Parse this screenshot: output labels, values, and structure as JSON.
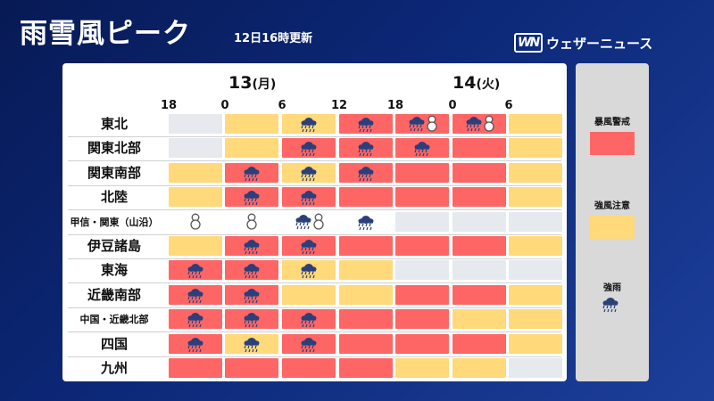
{
  "header": {
    "title": "雨雪風ピーク",
    "updated": "12日16時更新",
    "brand": "ウェザーニュース",
    "brand_logo": "WN"
  },
  "days": [
    {
      "day": "13",
      "weekday": "(月)"
    },
    {
      "day": "14",
      "weekday": "(火)"
    }
  ],
  "hours": [
    "18",
    "0",
    "6",
    "12",
    "18",
    "0",
    "6"
  ],
  "rows": [
    {
      "label": "東北",
      "small": false,
      "cells": [
        [
          "gray",
          ""
        ],
        [
          "yellow",
          ""
        ],
        [
          "yellow",
          "rain"
        ],
        [
          "red",
          "rain"
        ],
        [
          "red",
          "rain-snow"
        ],
        [
          "red",
          "rain-snow"
        ],
        [
          "yellow",
          ""
        ]
      ]
    },
    {
      "label": "関東北部",
      "small": false,
      "cells": [
        [
          "gray",
          ""
        ],
        [
          "yellow",
          ""
        ],
        [
          "red",
          "rain"
        ],
        [
          "red",
          "rain"
        ],
        [
          "red",
          "rain"
        ],
        [
          "red",
          ""
        ],
        [
          "yellow",
          ""
        ]
      ]
    },
    {
      "label": "関東南部",
      "small": false,
      "cells": [
        [
          "yellow",
          ""
        ],
        [
          "red",
          "rain"
        ],
        [
          "yellow",
          "rain"
        ],
        [
          "red",
          "rain"
        ],
        [
          "red",
          ""
        ],
        [
          "red",
          ""
        ],
        [
          "yellow",
          ""
        ]
      ]
    },
    {
      "label": "北陸",
      "small": false,
      "cells": [
        [
          "yellow",
          ""
        ],
        [
          "red",
          "rain"
        ],
        [
          "red",
          "rain"
        ],
        [
          "red",
          ""
        ],
        [
          "red",
          ""
        ],
        [
          "red",
          ""
        ],
        [
          "yellow",
          ""
        ]
      ]
    },
    {
      "label": "甲信・関東（山沿）",
      "small": true,
      "cells": [
        [
          "white",
          "snow"
        ],
        [
          "white",
          "snow"
        ],
        [
          "white",
          "rain-snow"
        ],
        [
          "white",
          "rain"
        ],
        [
          "gray",
          ""
        ],
        [
          "gray",
          ""
        ],
        [
          "gray",
          ""
        ]
      ]
    },
    {
      "label": "伊豆諸島",
      "small": false,
      "cells": [
        [
          "yellow",
          ""
        ],
        [
          "red",
          "rain"
        ],
        [
          "red",
          "rain"
        ],
        [
          "red",
          ""
        ],
        [
          "red",
          ""
        ],
        [
          "red",
          ""
        ],
        [
          "yellow",
          ""
        ]
      ]
    },
    {
      "label": "東海",
      "small": false,
      "cells": [
        [
          "red",
          "rain"
        ],
        [
          "red",
          "rain"
        ],
        [
          "yellow",
          "rain"
        ],
        [
          "yellow",
          ""
        ],
        [
          "gray",
          ""
        ],
        [
          "gray",
          ""
        ],
        [
          "gray",
          ""
        ]
      ]
    },
    {
      "label": "近畿南部",
      "small": false,
      "cells": [
        [
          "red",
          "rain"
        ],
        [
          "red",
          "rain"
        ],
        [
          "yellow",
          ""
        ],
        [
          "yellow",
          ""
        ],
        [
          "red",
          ""
        ],
        [
          "red",
          ""
        ],
        [
          "yellow",
          ""
        ]
      ]
    },
    {
      "label": "中国・近畿北部",
      "small": true,
      "cells": [
        [
          "red",
          "rain"
        ],
        [
          "red",
          "rain"
        ],
        [
          "red",
          "rain"
        ],
        [
          "red",
          ""
        ],
        [
          "red",
          ""
        ],
        [
          "yellow",
          ""
        ],
        [
          "yellow",
          ""
        ]
      ]
    },
    {
      "label": "四国",
      "small": false,
      "cells": [
        [
          "red",
          "rain"
        ],
        [
          "yellow",
          "rain"
        ],
        [
          "red",
          "rain"
        ],
        [
          "red",
          ""
        ],
        [
          "red",
          ""
        ],
        [
          "red",
          ""
        ],
        [
          "yellow",
          ""
        ]
      ]
    },
    {
      "label": "九州",
      "small": false,
      "cells": [
        [
          "red",
          ""
        ],
        [
          "red",
          ""
        ],
        [
          "red",
          ""
        ],
        [
          "red",
          ""
        ],
        [
          "yellow",
          ""
        ],
        [
          "yellow",
          ""
        ],
        [
          "gray",
          ""
        ]
      ]
    }
  ],
  "legend": {
    "storm_warning": "暴風警戒",
    "wind_caution": "強風注意",
    "heavy_rain": "強雨"
  },
  "colors": {
    "red": "#fe6665",
    "yellow": "#ffd97a",
    "gray": "#e6e9ee",
    "white": "#ffffff",
    "cloud": "#2b3f7a"
  },
  "icons": {
    "rain": "heavy-rain-icon",
    "rain-snow": "rain-snow-icon",
    "snow": "snowman-icon"
  }
}
